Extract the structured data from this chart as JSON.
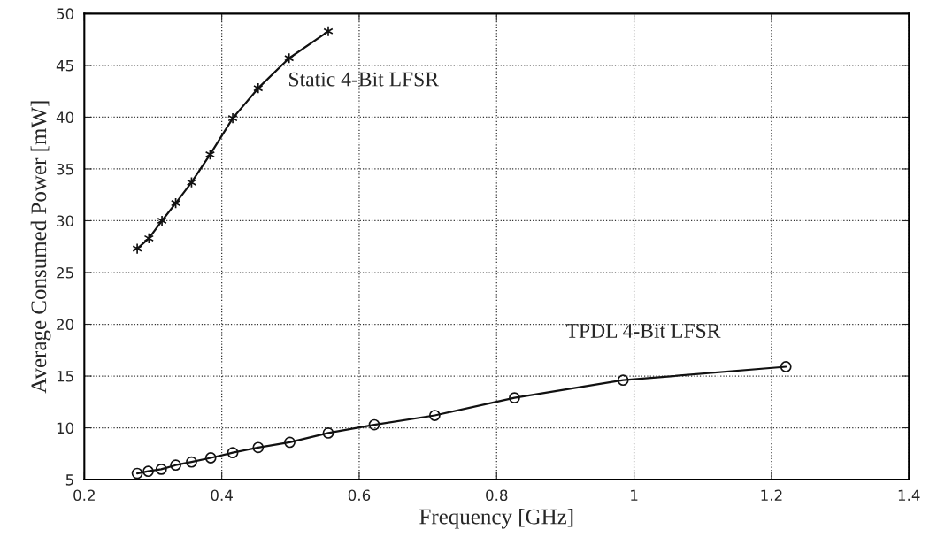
{
  "chart_data": {
    "type": "line",
    "xlabel": "Frequency [GHz]",
    "ylabel": "Average Consumed Power [mW]",
    "series": [
      {
        "color": "#111111",
        "marker": "cross",
        "x": [
          0.277,
          0.294,
          0.313,
          0.333,
          0.356,
          0.383,
          0.416,
          0.453,
          0.498,
          0.555
        ],
        "values": [
          27.3,
          28.3,
          30.0,
          31.7,
          33.7,
          36.4,
          39.9,
          42.8,
          45.7,
          48.3
        ]
      },
      {
        "color": "#111111",
        "marker": "circle",
        "x": [
          0.277,
          0.293,
          0.312,
          0.333,
          0.356,
          0.384,
          0.416,
          0.453,
          0.499,
          0.555,
          0.622,
          0.71,
          0.826,
          0.984,
          1.221
        ],
        "values": [
          5.6,
          5.8,
          6.0,
          6.4,
          6.7,
          7.1,
          7.6,
          8.1,
          8.6,
          9.5,
          10.3,
          11.2,
          12.9,
          14.6,
          15.9
        ]
      }
    ],
    "annotations": [
      "Static 4-Bit LFSR",
      "TPDL 4-Bit LFSR"
    ],
    "xlim": [
      0.2,
      1.4
    ],
    "xticks": [
      0.2,
      0.4,
      0.6,
      0.8,
      1,
      1.2,
      1.4
    ],
    "ylim": [
      5,
      50
    ],
    "yticks": [
      5,
      10,
      15,
      20,
      25,
      30,
      35,
      40,
      45,
      50
    ],
    "grid": true,
    "line_style": "solid"
  }
}
